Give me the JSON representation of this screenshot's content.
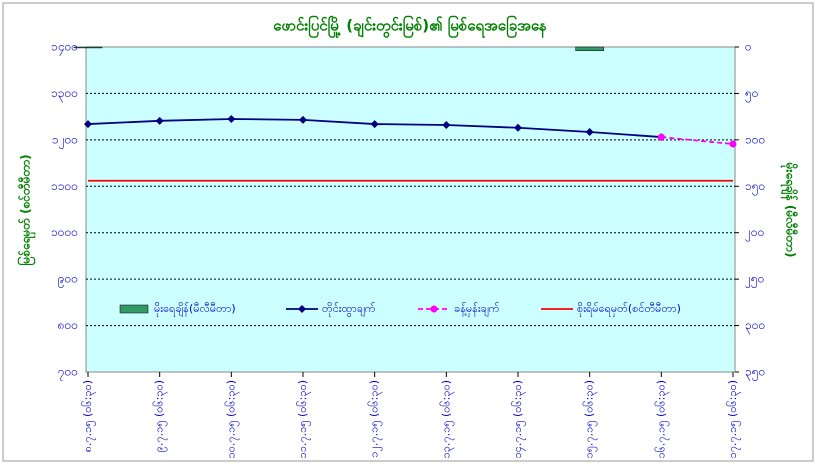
{
  "chart_data": {
    "type": "line",
    "title": "ဖောင်းပြင်မြို့ (ချင်းတွင်းမြစ်)၏ မြစ်ရေအခြေအနေ",
    "y_label": "မြစ်ရေမှတ် (စင်တီမီတာ)",
    "y2_label": "မိုးရေချိန် (မီလီမီတာ)",
    "categories": [
      "၈.၇.၁၅ (၀၆:၃၀)",
      "၉.၇.၁၅ (၀၆:၃၀)",
      "၁၀.၇.၁၅ (၀၆:၃၀)",
      "၁၁.၇.၁၅ (၀၆:၃၀)",
      "၁၂.၇.၁၅ (၀၆:၃၀)",
      "၁၃.၇.၁၅ (၀၆:၃၀)",
      "၁၄.၇.၁၅ (၀၆:၃၀)",
      "၁၅.၇.၁၅ (၀၆:၃၀)",
      "၁၆.၇.၁၅ (၀၆:၃၀)",
      "၁၇.၇.၁၅ (၀၆:၃၀)"
    ],
    "ylim": [
      700,
      1400
    ],
    "yticks": [
      {
        "value": 700,
        "label": "၇၀၀"
      },
      {
        "value": 800,
        "label": "၈၀၀"
      },
      {
        "value": 900,
        "label": "၉၀၀"
      },
      {
        "value": 1000,
        "label": "၁၀၀၀"
      },
      {
        "value": 1100,
        "label": "၁၁၀၀"
      },
      {
        "value": 1200,
        "label": "၁၂၀၀"
      },
      {
        "value": 1300,
        "label": "၁၃၀၀"
      },
      {
        "value": 1400,
        "label": "၁၄၀၀"
      }
    ],
    "y2lim": [
      350,
      0
    ],
    "y2ticks": [
      {
        "value": 0,
        "label": "၀"
      },
      {
        "value": 50,
        "label": "၅၀"
      },
      {
        "value": 100,
        "label": "၁၀၀"
      },
      {
        "value": 150,
        "label": "၁၅၀"
      },
      {
        "value": 200,
        "label": "၂၀၀"
      },
      {
        "value": 250,
        "label": "၂၅၀"
      },
      {
        "value": 300,
        "label": "၃၀၀"
      },
      {
        "value": 350,
        "label": "၃၅၀"
      }
    ],
    "grid": true,
    "series": [
      {
        "name": "မိုးရေချိန်(မီလီမီတာ)",
        "type": "bar",
        "axis": "y2",
        "color": "#339966",
        "values": [
          1,
          0,
          0,
          0,
          0,
          0,
          0,
          4,
          0,
          0
        ]
      },
      {
        "name": "တိုင်းထွာချက်",
        "type": "line",
        "marker": "diamond",
        "color": "#000080",
        "values": [
          1234,
          1241,
          1245,
          1243,
          1234,
          1232,
          1226,
          1217,
          1206,
          null
        ]
      },
      {
        "name": "ခန့်မှန်းချက်",
        "type": "line",
        "marker": "circle",
        "dashed": true,
        "color": "#ff00ff",
        "values": [
          null,
          null,
          null,
          null,
          null,
          null,
          null,
          null,
          1206,
          1191
        ]
      },
      {
        "name": "စိုးရိမ်ရေမှတ်(စင်တီမီတာ)",
        "type": "line",
        "color": "#ff0000",
        "values": [
          1112,
          1112,
          1112,
          1112,
          1112,
          1112,
          1112,
          1112,
          1112,
          1112
        ]
      }
    ]
  }
}
